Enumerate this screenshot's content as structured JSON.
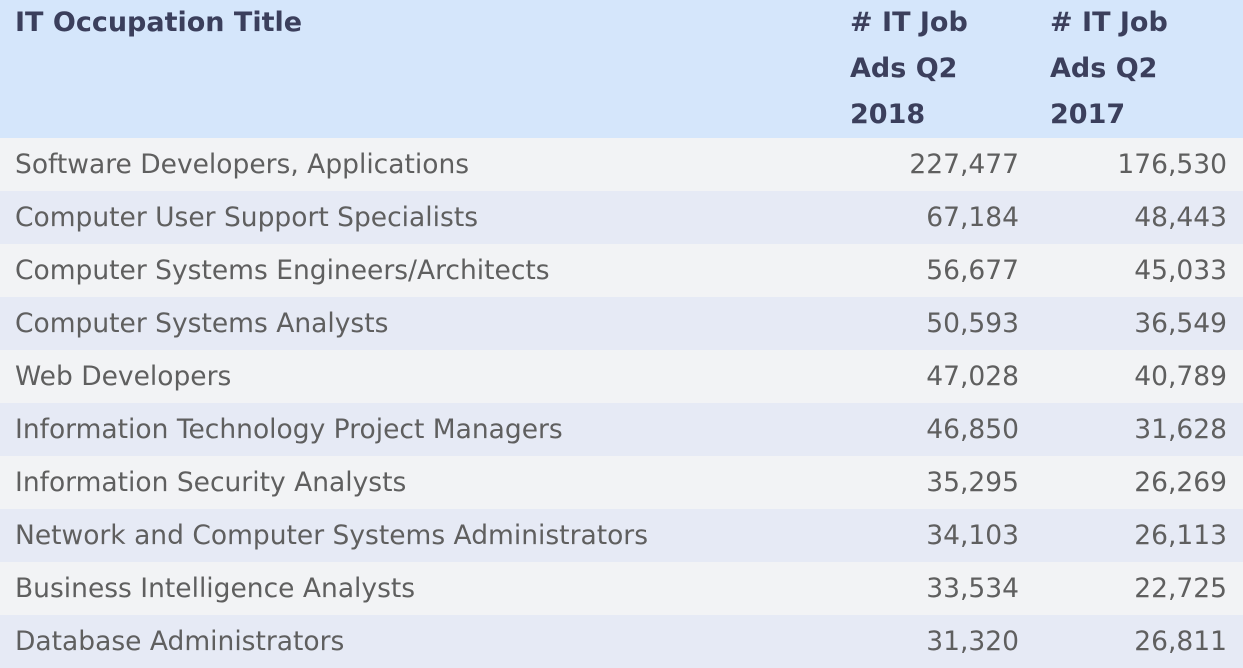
{
  "table": {
    "headers": [
      "IT Occupation Title",
      "# IT Job Ads Q2 2018",
      "# IT Job Ads Q2 2017"
    ],
    "rows": [
      [
        "Software Developers, Applications",
        "227,477",
        "176,530"
      ],
      [
        "Computer User Support Specialists",
        "67,184",
        "48,443"
      ],
      [
        "Computer Systems Engineers/Architects",
        "56,677",
        "45,033"
      ],
      [
        "Computer Systems Analysts",
        "50,593",
        "36,549"
      ],
      [
        "Web Developers",
        "47,028",
        "40,789"
      ],
      [
        "Information Technology Project Managers",
        "46,850",
        "31,628"
      ],
      [
        "Information Security Analysts",
        "35,295",
        "26,269"
      ],
      [
        "Network and Computer Systems Administrators",
        "34,103",
        "26,113"
      ],
      [
        "Business Intelligence Analysts",
        "33,534",
        "22,725"
      ],
      [
        "Database Administrators",
        "31,320",
        "26,811"
      ]
    ]
  },
  "colors": {
    "header_bg": "#d5e6fb",
    "row_odd": "#f2f3f5",
    "row_even": "#e6eaf5",
    "header_text": "#3b3f5c",
    "body_text": "#5f5f5f"
  }
}
